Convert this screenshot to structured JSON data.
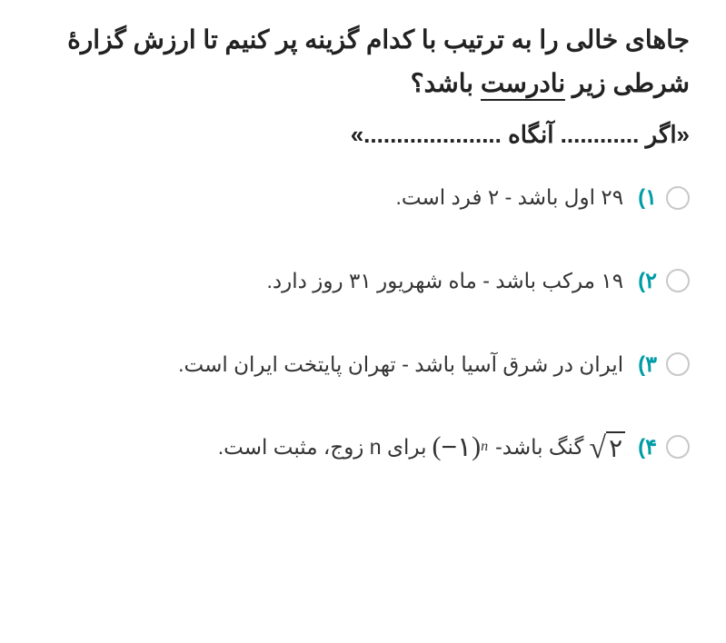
{
  "question": {
    "line1_before": "جاهای خالی را به ترتیب با کدام گزینه پر کنیم تا ارزش گزارهٔ شرطی زیر ",
    "underlined": "نادرست",
    "line1_after": " باشد؟",
    "statement": "«اگر ............ آنگاه .....................»"
  },
  "options": [
    {
      "num": "۱)",
      "text": "۲۹ اول باشد - ۲ فرد است."
    },
    {
      "num": "۲)",
      "text": "۱۹ مرکب باشد - ماه شهریور ۳۱ روز دارد."
    },
    {
      "num": "۳)",
      "text": "ایران در شرق آسیا باشد - تهران پایتخت ایران است."
    },
    {
      "num": "۴)",
      "sqrt_radicand": "۲",
      "mid_text_a": " گنگ باشد- ",
      "paren_inner": "−۱",
      "exponent": "n",
      "mid_text_b": " برای n زوج، مثبت است."
    }
  ],
  "colors": {
    "accent": "#009ca6",
    "text": "#2c2c2c",
    "radio_border": "#c8c8c8",
    "background": "#ffffff"
  },
  "typography": {
    "question_fontsize": 28,
    "option_fontsize": 23,
    "option_num_fontsize": 24,
    "math_fontsize": 30
  }
}
